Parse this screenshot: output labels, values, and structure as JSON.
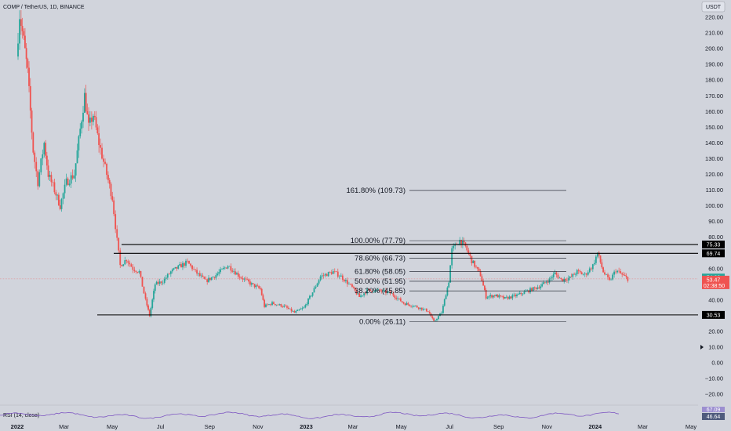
{
  "header": {
    "symbol": "COMP / TetherUS, 1D, BINANCE",
    "currency": "USDT"
  },
  "colors": {
    "bg": "#d1d4dc",
    "up": "#26a69a",
    "down": "#ef5350",
    "line": "#131722",
    "rsi": "#7e57c2",
    "price_bg": "#ef5350",
    "rsi_bg": "#4f5b7d"
  },
  "chart_data": {
    "type": "candlestick",
    "title": "",
    "x_ticks": [
      "2022",
      "Mar",
      "May",
      "Jul",
      "Sep",
      "Nov",
      "2023",
      "Mar",
      "May",
      "Jul",
      "Sep",
      "Nov",
      "2024",
      "Mar",
      "May"
    ],
    "y_ticks": [
      220,
      210,
      200,
      190,
      180,
      170,
      160,
      150,
      140,
      130,
      120,
      110,
      100,
      90,
      80,
      70,
      60,
      50,
      40,
      30,
      20,
      10,
      0,
      -10,
      -20
    ],
    "y_tick_labels": [
      "220.00",
      "210.00",
      "200.00",
      "190.00",
      "180.00",
      "170.00",
      "160.00",
      "150.00",
      "140.00",
      "130.00",
      "120.00",
      "110.00",
      "100.00",
      "90.00",
      "80.00",
      "70.00",
      "60.00",
      "50.00",
      "40.00",
      "30.00",
      "20.00",
      "10.00",
      "0.00",
      "−10.00",
      "−20.00"
    ],
    "ylim": [
      -25,
      228
    ],
    "price_path": [
      [
        "2022-01-01",
        195
      ],
      [
        "2022-01-05",
        222
      ],
      [
        "2022-01-10",
        205
      ],
      [
        "2022-01-15",
        185
      ],
      [
        "2022-01-22",
        135
      ],
      [
        "2022-01-28",
        115
      ],
      [
        "2022-02-05",
        140
      ],
      [
        "2022-02-10",
        120
      ],
      [
        "2022-02-18",
        110
      ],
      [
        "2022-02-25",
        100
      ],
      [
        "2022-03-05",
        115
      ],
      [
        "2022-03-15",
        120
      ],
      [
        "2022-03-28",
        170
      ],
      [
        "2022-04-02",
        150
      ],
      [
        "2022-04-08",
        158
      ],
      [
        "2022-04-15",
        140
      ],
      [
        "2022-04-25",
        120
      ],
      [
        "2022-05-02",
        105
      ],
      [
        "2022-05-08",
        78
      ],
      [
        "2022-05-12",
        62
      ],
      [
        "2022-05-20",
        66
      ],
      [
        "2022-05-28",
        60
      ],
      [
        "2022-06-05",
        58
      ],
      [
        "2022-06-13",
        40
      ],
      [
        "2022-06-18",
        30
      ],
      [
        "2022-06-25",
        50
      ],
      [
        "2022-07-05",
        52
      ],
      [
        "2022-07-15",
        58
      ],
      [
        "2022-07-28",
        62
      ],
      [
        "2022-08-05",
        64
      ],
      [
        "2022-08-15",
        58
      ],
      [
        "2022-08-28",
        52
      ],
      [
        "2022-09-10",
        56
      ],
      [
        "2022-09-25",
        62
      ],
      [
        "2022-10-10",
        55
      ],
      [
        "2022-10-25",
        50
      ],
      [
        "2022-11-05",
        47
      ],
      [
        "2022-11-10",
        36
      ],
      [
        "2022-11-20",
        38
      ],
      [
        "2022-12-05",
        36
      ],
      [
        "2022-12-18",
        32
      ],
      [
        "2022-12-30",
        35
      ],
      [
        "2023-01-10",
        45
      ],
      [
        "2023-01-20",
        55
      ],
      [
        "2023-02-05",
        58
      ],
      [
        "2023-02-15",
        55
      ],
      [
        "2023-03-01",
        48
      ],
      [
        "2023-03-10",
        42
      ],
      [
        "2023-03-20",
        46
      ],
      [
        "2023-04-05",
        46
      ],
      [
        "2023-04-20",
        44
      ],
      [
        "2023-05-05",
        38
      ],
      [
        "2023-05-20",
        36
      ],
      [
        "2023-06-05",
        33
      ],
      [
        "2023-06-12",
        26.11
      ],
      [
        "2023-06-22",
        32
      ],
      [
        "2023-07-01",
        52
      ],
      [
        "2023-07-05",
        72
      ],
      [
        "2023-07-15",
        78
      ],
      [
        "2023-07-22",
        74
      ],
      [
        "2023-07-30",
        65
      ],
      [
        "2023-08-10",
        56
      ],
      [
        "2023-08-17",
        42
      ],
      [
        "2023-08-28",
        43
      ],
      [
        "2023-09-10",
        41
      ],
      [
        "2023-09-25",
        43
      ],
      [
        "2023-10-10",
        46
      ],
      [
        "2023-10-25",
        49
      ],
      [
        "2023-11-05",
        53
      ],
      [
        "2023-11-12",
        57
      ],
      [
        "2023-11-20",
        53
      ],
      [
        "2023-12-01",
        54
      ],
      [
        "2023-12-10",
        58
      ],
      [
        "2023-12-20",
        56
      ],
      [
        "2023-12-30",
        62
      ],
      [
        "2024-01-05",
        70
      ],
      [
        "2024-01-12",
        58
      ],
      [
        "2024-01-20",
        52
      ],
      [
        "2024-01-28",
        59
      ],
      [
        "2024-02-05",
        56
      ],
      [
        "2024-02-12",
        53.47
      ]
    ],
    "fib_levels": [
      {
        "label": "161.80% (109.73)",
        "value": 109.73
      },
      {
        "label": "100.00% (77.79)",
        "value": 77.79
      },
      {
        "label": "78.60% (66.73)",
        "value": 66.73
      },
      {
        "label": "61.80% (58.05)",
        "value": 58.05
      },
      {
        "label": "50.00% (51.95)",
        "value": 51.95
      },
      {
        "label": "38.20% (45.85)",
        "value": 45.85
      },
      {
        "label": "0.00% (26.11)",
        "value": 26.11
      }
    ],
    "horizontal_lines": [
      {
        "value": 75.33,
        "label": "75.33"
      },
      {
        "value": 69.74,
        "label": "69.74"
      },
      {
        "value": 30.53,
        "label": "30.53"
      }
    ],
    "current_price": {
      "value": 53.47,
      "label": "53.47",
      "countdown": "02:38:50"
    },
    "secondary_marker": {
      "value": 54.08,
      "label": "54.08"
    },
    "rsi": {
      "title": "RSI (14, close)",
      "value_label": "46.64",
      "upper_label": "67.09",
      "value": 46.64
    }
  }
}
